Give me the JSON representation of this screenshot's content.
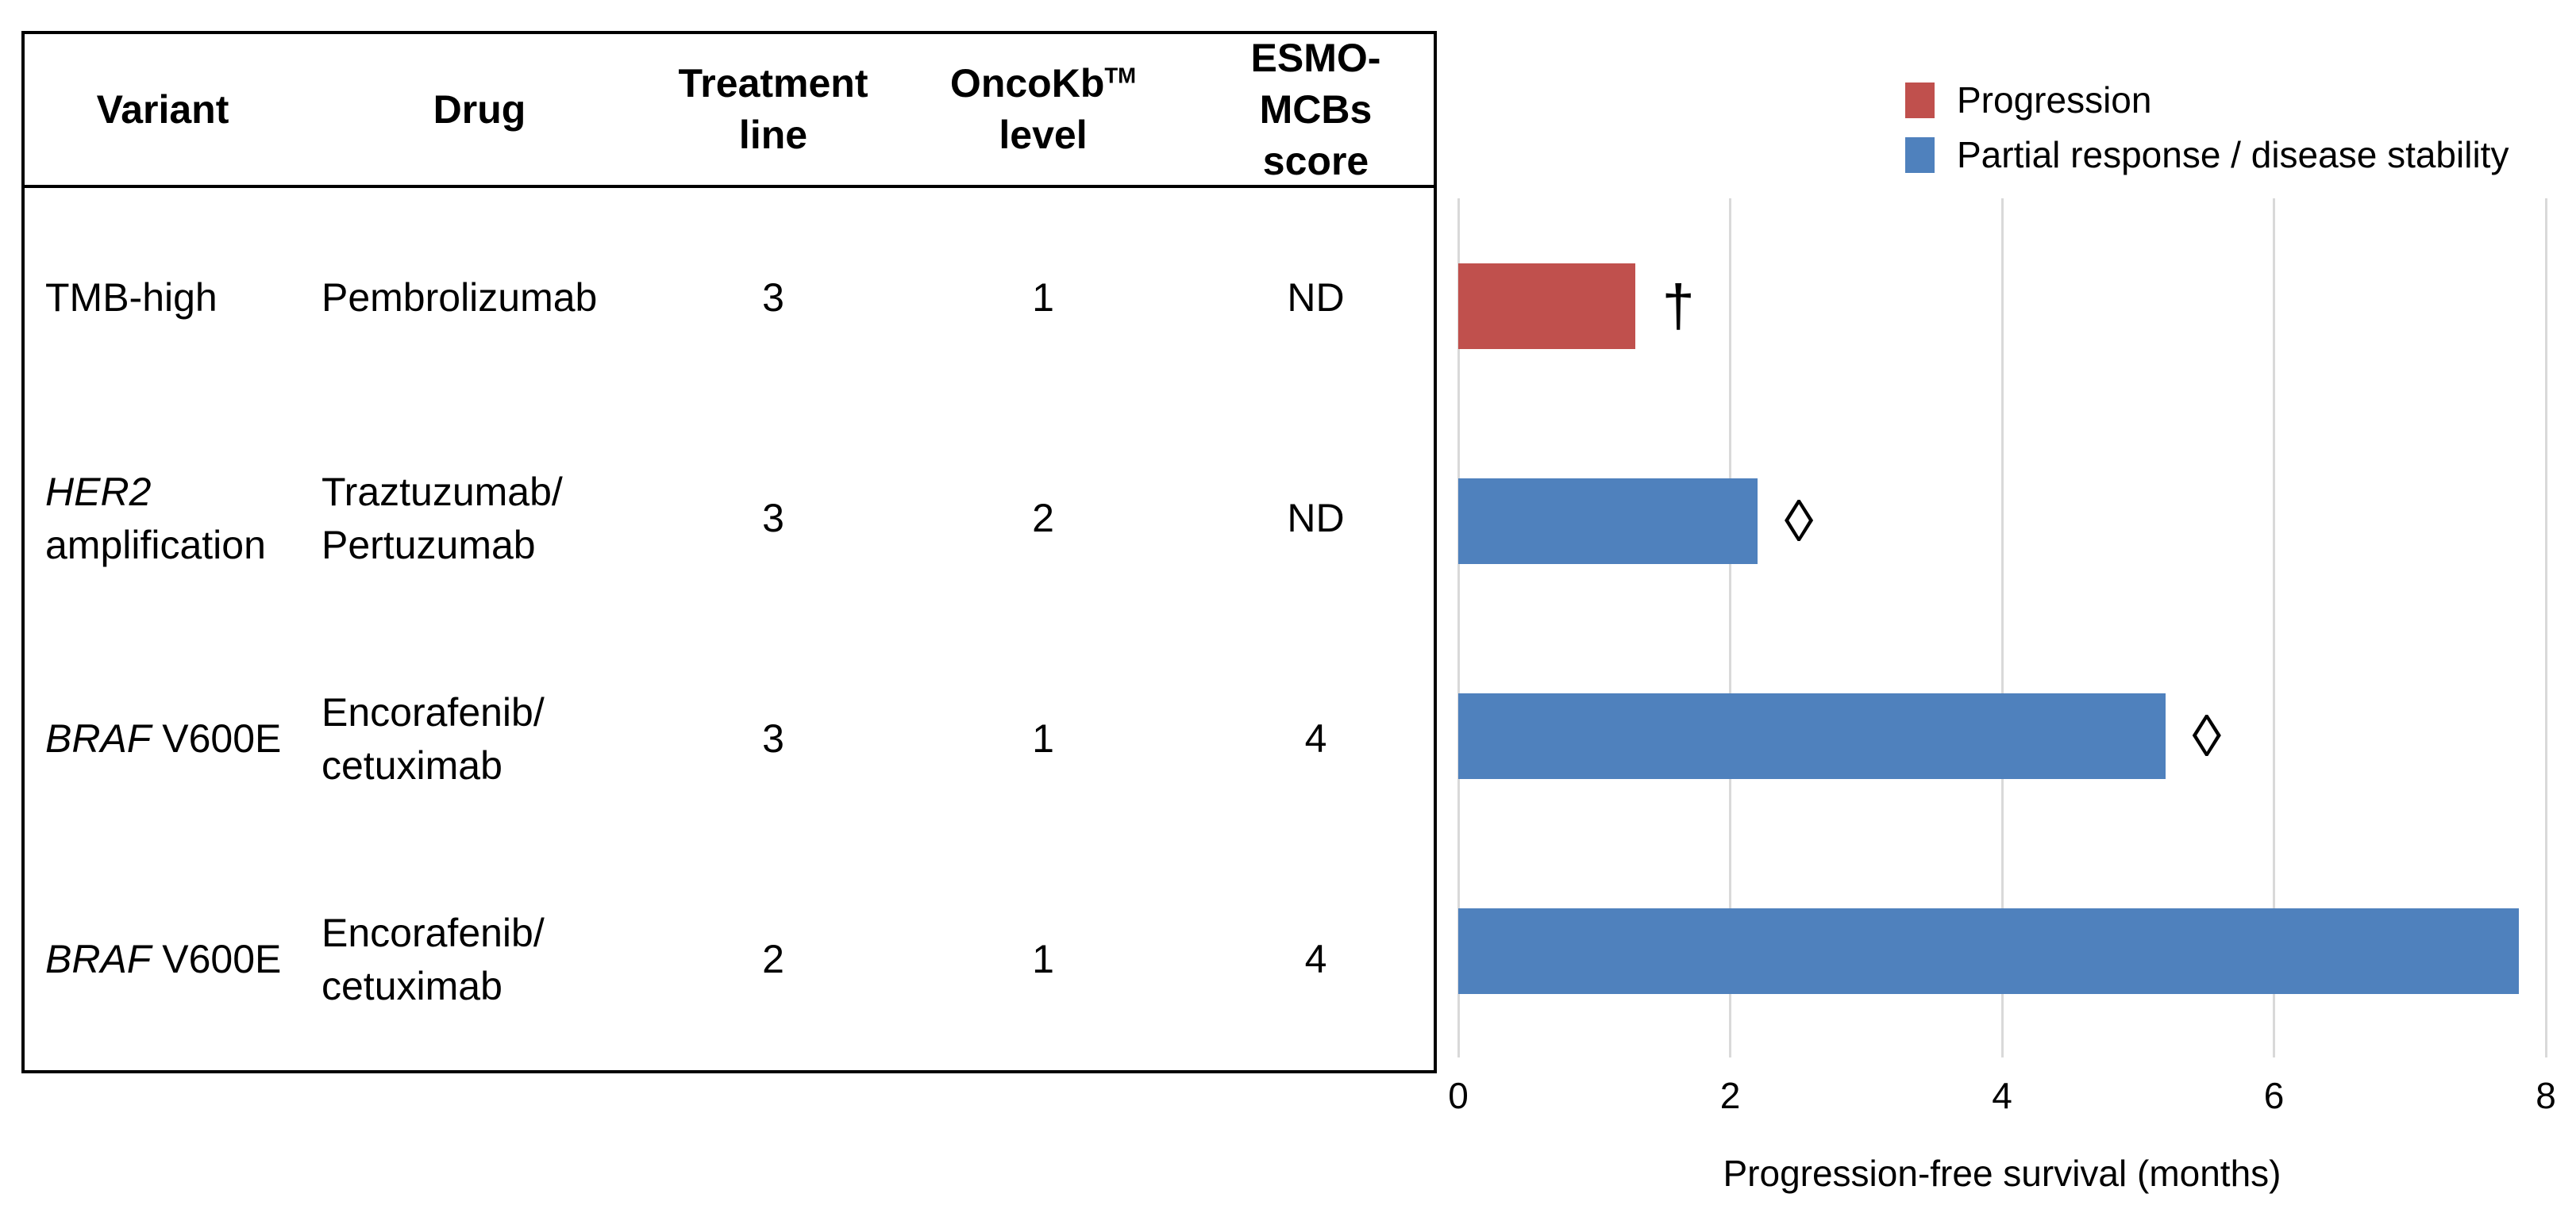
{
  "table": {
    "columns": [
      {
        "label": "Variant"
      },
      {
        "label": "Drug"
      },
      {
        "line1": "Treatment",
        "line2": "line"
      },
      {
        "line1": "OncoKb",
        "sup": "TM",
        "line2": "level"
      },
      {
        "line1": "ESMO-MCBs",
        "line2": "score"
      }
    ],
    "rows": [
      {
        "variant_italic": "",
        "variant": "TMB-high",
        "drug": "Pembrolizumab",
        "treatment_line": "3",
        "oncokb_level": "1",
        "esmo_score": "ND",
        "pfs_months": 1.3,
        "outcome": "progression",
        "marker": "†"
      },
      {
        "variant_italic": "HER2",
        "variant": "amplification",
        "drug": "Traztuzumab/\nPertuzumab",
        "treatment_line": "3",
        "oncokb_level": "2",
        "esmo_score": "ND",
        "pfs_months": 2.2,
        "outcome": "partial_response",
        "marker": "◊"
      },
      {
        "variant_italic": "BRAF",
        "variant": "V600E",
        "drug": "Encorafenib/\ncetuximab",
        "treatment_line": "3",
        "oncokb_level": "1",
        "esmo_score": "4",
        "pfs_months": 5.2,
        "outcome": "partial_response",
        "marker": "◊"
      },
      {
        "variant_italic": "BRAF",
        "variant": "V600E",
        "drug": "Encorafenib/\ncetuximab",
        "treatment_line": "2",
        "oncokb_level": "1",
        "esmo_score": "4",
        "pfs_months": 7.8,
        "outcome": "partial_response",
        "marker": ""
      }
    ]
  },
  "legend": {
    "items": [
      {
        "key": "progression",
        "label": "Progression",
        "color": "#C0504D"
      },
      {
        "key": "partial_response",
        "label": "Partial response / disease stability",
        "color": "#4F81BD"
      }
    ]
  },
  "x_axis": {
    "title": "Progression-free survival (months)",
    "tick_labels": [
      "0",
      "2",
      "4",
      "6",
      "8"
    ]
  },
  "chart_data": {
    "type": "bar",
    "orientation": "horizontal",
    "title": "",
    "xlabel": "Progression-free survival (months)",
    "ylabel": "",
    "xlim": [
      0,
      8
    ],
    "xticks": [
      0,
      2,
      4,
      6,
      8
    ],
    "grid": true,
    "legend_position": "top-right",
    "categories": [
      "TMB-high — Pembrolizumab (treatment line 3)",
      "HER2 amplification — Traztuzumab/Pertuzumab (treatment line 3)",
      "BRAF V600E — Encorafenib/cetuximab (treatment line 3)",
      "BRAF V600E — Encorafenib/cetuximab (treatment line 2)"
    ],
    "values": [
      1.3,
      2.2,
      5.2,
      7.8
    ],
    "colors": [
      "#C0504D",
      "#4F81BD",
      "#4F81BD",
      "#4F81BD"
    ],
    "annotations": [
      "†",
      "◊",
      "◊",
      ""
    ],
    "series_labels": {
      "progression": "Progression",
      "partial_response": "Partial response / disease stability"
    }
  }
}
